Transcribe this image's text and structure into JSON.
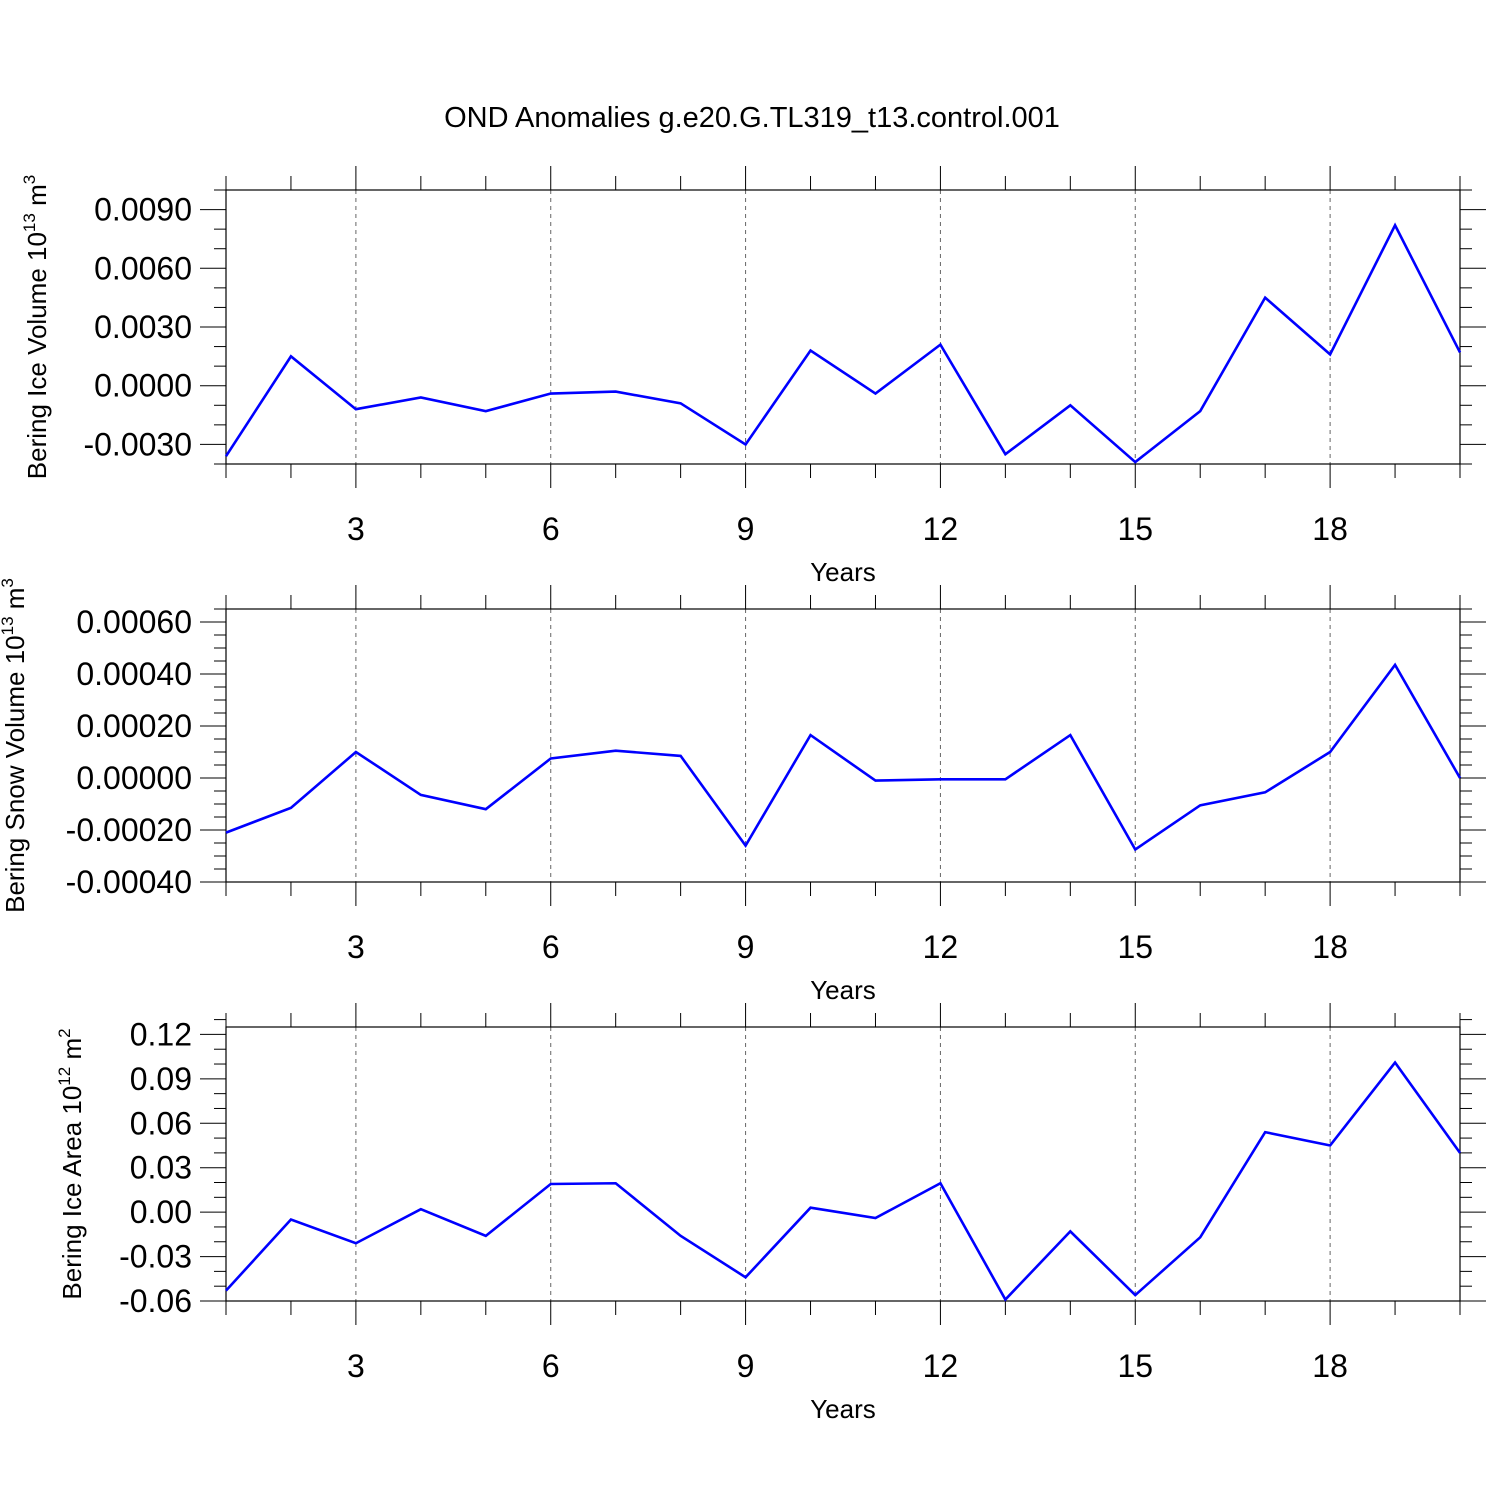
{
  "figure": {
    "title": "OND Anomalies g.e20.G.TL319_t13.control.001"
  },
  "chart_data": [
    {
      "type": "line",
      "title": "",
      "xlabel": "Years",
      "ylabel_main": "Bering Ice Volume 10",
      "ylabel_exponent": "13",
      "ylabel_unit": " m",
      "ylabel_unit_exponent": "3",
      "xlim": [
        1,
        20
      ],
      "ylim": [
        -0.004,
        0.01
      ],
      "xticks": [
        3,
        6,
        9,
        12,
        15,
        18
      ],
      "xtick_labels": [
        "3",
        "6",
        "9",
        "12",
        "15",
        "18"
      ],
      "yticks": [
        -0.003,
        0.0,
        0.003,
        0.006,
        0.009
      ],
      "ytick_labels": [
        "-0.0030",
        "0.0000",
        "0.0030",
        "0.0060",
        "0.0090"
      ],
      "yminor_step": 0.001,
      "grid": "dashed vertical at major x ticks",
      "series": [
        {
          "name": "Bering Ice Volume",
          "color": "#0000ff",
          "x": [
            1,
            2,
            3,
            4,
            5,
            6,
            7,
            8,
            9,
            10,
            11,
            12,
            13,
            14,
            15,
            16,
            17,
            18,
            19,
            20
          ],
          "values": [
            -0.0036,
            0.0015,
            -0.0012,
            -0.0006,
            -0.0013,
            -0.0004,
            -0.0003,
            -0.0009,
            -0.003,
            0.0018,
            -0.0004,
            0.0021,
            -0.0035,
            -0.001,
            -0.0039,
            -0.0013,
            0.0045,
            0.0016,
            0.0082,
            0.0017
          ]
        }
      ]
    },
    {
      "type": "line",
      "title": "",
      "xlabel": "Years",
      "ylabel_main": "Bering Snow Volume 10",
      "ylabel_exponent": "13",
      "ylabel_unit": " m",
      "ylabel_unit_exponent": "3",
      "xlim": [
        1,
        20
      ],
      "ylim": [
        -0.0004,
        0.00065
      ],
      "xticks": [
        3,
        6,
        9,
        12,
        15,
        18
      ],
      "xtick_labels": [
        "3",
        "6",
        "9",
        "12",
        "15",
        "18"
      ],
      "yticks": [
        -0.0004,
        -0.0002,
        0.0,
        0.0002,
        0.0004,
        0.0006
      ],
      "ytick_labels": [
        "-0.00040",
        "-0.00020",
        "0.00000",
        "0.00020",
        "0.00040",
        "0.00060"
      ],
      "yminor_step": 5e-05,
      "grid": "dashed vertical at major x ticks",
      "series": [
        {
          "name": "Bering Snow Volume",
          "color": "#0000ff",
          "x": [
            1,
            2,
            3,
            4,
            5,
            6,
            7,
            8,
            9,
            10,
            11,
            12,
            13,
            14,
            15,
            16,
            17,
            18,
            19,
            20
          ],
          "values": [
            -0.00021,
            -0.000115,
            0.0001,
            -6.5e-05,
            -0.00012,
            7.5e-05,
            0.000105,
            8.5e-05,
            -0.00026,
            0.000165,
            -1e-05,
            -5e-06,
            -5e-06,
            0.000165,
            -0.000275,
            -0.000105,
            -5.5e-05,
            0.0001,
            0.000435,
            0.0
          ]
        }
      ]
    },
    {
      "type": "line",
      "title": "",
      "xlabel": "Years",
      "ylabel_main": "Bering Ice Area 10",
      "ylabel_exponent": "12",
      "ylabel_unit": " m",
      "ylabel_unit_exponent": "2",
      "xlim": [
        1,
        20
      ],
      "ylim": [
        -0.06,
        0.125
      ],
      "xticks": [
        3,
        6,
        9,
        12,
        15,
        18
      ],
      "xtick_labels": [
        "3",
        "6",
        "9",
        "12",
        "15",
        "18"
      ],
      "yticks": [
        -0.06,
        -0.03,
        0.0,
        0.03,
        0.06,
        0.09,
        0.12
      ],
      "ytick_labels": [
        "-0.06",
        "-0.03",
        "0.00",
        "0.03",
        "0.06",
        "0.09",
        "0.12"
      ],
      "yminor_step": 0.01,
      "grid": "dashed vertical at major x ticks",
      "series": [
        {
          "name": "Bering Ice Area",
          "color": "#0000ff",
          "x": [
            1,
            2,
            3,
            4,
            5,
            6,
            7,
            8,
            9,
            10,
            11,
            12,
            13,
            14,
            15,
            16,
            17,
            18,
            19,
            20
          ],
          "values": [
            -0.053,
            -0.005,
            -0.021,
            0.002,
            -0.016,
            0.019,
            0.0195,
            -0.016,
            -0.044,
            0.003,
            -0.004,
            0.0195,
            -0.059,
            -0.013,
            -0.056,
            -0.017,
            0.054,
            0.045,
            0.101,
            0.04
          ]
        }
      ]
    }
  ]
}
